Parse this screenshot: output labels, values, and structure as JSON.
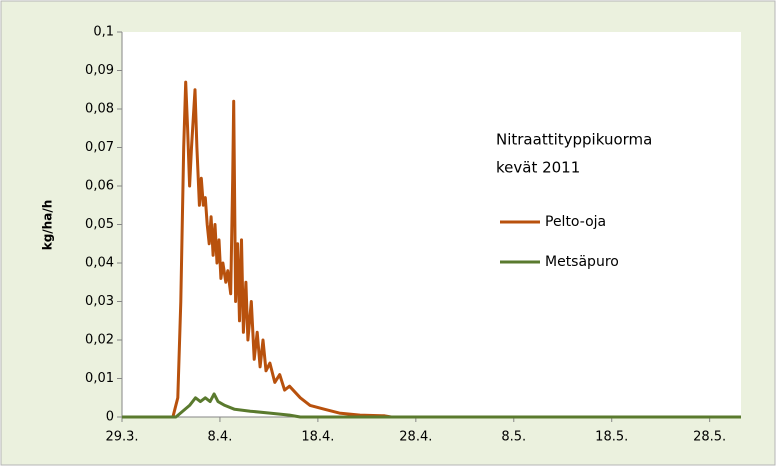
{
  "chart_data": {
    "type": "line",
    "title": [
      "Nitraattityppikuorma",
      "kevät 2011"
    ],
    "y_label": "kg/ha/h",
    "xlim": [
      0,
      63.2
    ],
    "xticks": [
      {
        "value": 0,
        "label": "29.3."
      },
      {
        "value": 10,
        "label": "8.4."
      },
      {
        "value": 20,
        "label": "18.4."
      },
      {
        "value": 30,
        "label": "28.4."
      },
      {
        "value": 40,
        "label": "8.5."
      },
      {
        "value": 50,
        "label": "18.5."
      },
      {
        "value": 60,
        "label": "28.5."
      }
    ],
    "ylim": [
      0,
      0.1
    ],
    "yticks": [
      0,
      {
        "value": 0.01,
        "label": "0,01"
      },
      {
        "value": 0.02,
        "label": "0,02"
      },
      {
        "value": 0.03,
        "label": "0,03"
      },
      {
        "value": 0.04,
        "label": "0,04"
      },
      {
        "value": 0.05,
        "label": "0,05"
      },
      {
        "value": 0.06,
        "label": "0,06"
      },
      {
        "value": 0.07,
        "label": "0,07"
      },
      {
        "value": 0.08,
        "label": "0,08"
      },
      {
        "value": 0.09,
        "label": "0,09"
      },
      {
        "value": 0.1,
        "label": "0,1"
      }
    ],
    "series": [
      {
        "name": "Pelto-oja",
        "color": "#b8510d",
        "x": [
          0,
          5.2,
          5.7,
          6.0,
          6.3,
          6.5,
          6.7,
          6.9,
          7.1,
          7.45,
          7.65,
          7.9,
          8.1,
          8.3,
          8.5,
          8.7,
          8.9,
          9.1,
          9.3,
          9.5,
          9.7,
          9.9,
          10.1,
          10.3,
          10.6,
          10.8,
          11.1,
          11.3,
          11.4,
          11.6,
          11.8,
          12.0,
          12.2,
          12.4,
          12.65,
          12.85,
          13.2,
          13.5,
          13.8,
          14.1,
          14.4,
          14.7,
          15.1,
          15.6,
          16.1,
          16.6,
          17.1,
          18.2,
          19.2,
          20.7,
          22.2,
          24.3,
          26.8,
          27.5,
          63.2
        ],
        "values": [
          0,
          0,
          0.005,
          0.03,
          0.07,
          0.087,
          0.075,
          0.06,
          0.07,
          0.085,
          0.07,
          0.055,
          0.062,
          0.055,
          0.057,
          0.05,
          0.045,
          0.052,
          0.042,
          0.05,
          0.04,
          0.046,
          0.036,
          0.04,
          0.035,
          0.038,
          0.032,
          0.062,
          0.082,
          0.03,
          0.045,
          0.025,
          0.046,
          0.022,
          0.035,
          0.02,
          0.03,
          0.015,
          0.022,
          0.013,
          0.02,
          0.012,
          0.014,
          0.009,
          0.011,
          0.007,
          0.008,
          0.005,
          0.003,
          0.002,
          0.001,
          0.0005,
          0.0003,
          0,
          0
        ]
      },
      {
        "name": "Metsäpuro",
        "color": "#5a7a2e",
        "x": [
          0,
          5.5,
          6.9,
          7.5,
          8.0,
          8.5,
          9.0,
          9.4,
          9.8,
          10.5,
          11.5,
          13.1,
          15.1,
          17.1,
          18.2,
          63.2
        ],
        "values": [
          0,
          0,
          0.003,
          0.005,
          0.004,
          0.005,
          0.004,
          0.006,
          0.004,
          0.003,
          0.002,
          0.0015,
          0.001,
          0.0005,
          0,
          0
        ]
      }
    ]
  }
}
